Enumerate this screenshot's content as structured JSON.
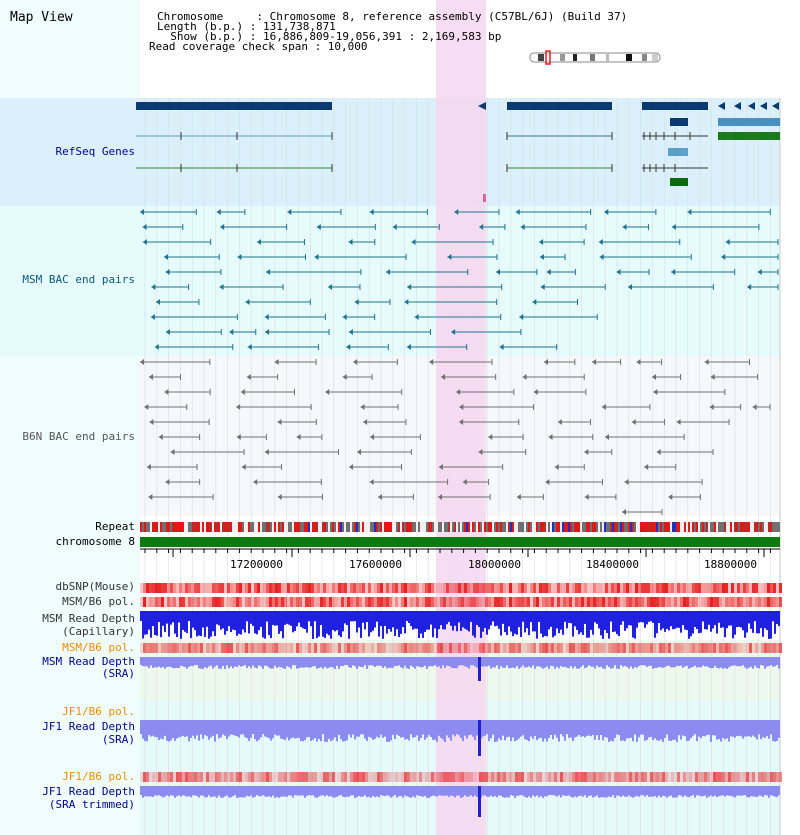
{
  "map_title": "Map View",
  "header": {
    "chromosome_line": "Chromosome     : Chromosome 8, reference assembly (C57BL/6J) (Build 37)",
    "length_line": "Length (b.p.) : 131,738,871",
    "show_line": "  Show (b.p.) : 16,886,809-19,056,391 : 2,169,583 bp",
    "coverage_line": "Read coverage check span : 10,000"
  },
  "tracks": {
    "refseq": "RefSeq Genes",
    "msm_bac": "MSM BAC end pairs",
    "b6n_bac": "B6N BAC end pairs",
    "repeat": "Repeat",
    "chromosome": "chromosome 8",
    "dbsnp": "dbSNP(Mouse)",
    "msm_b6_pol_1": "MSM/B6 pol.",
    "msm_depth_cap_1": "MSM Read Depth",
    "msm_depth_cap_2": "(Capillary)",
    "msm_b6_pol_2": "MSM/B6 pol.",
    "msm_depth_sra_1": "MSM Read Depth",
    "msm_depth_sra_2": "(SRA)",
    "jf1_b6_pol_1": "JF1/B6 pol.",
    "jf1_depth_sra_1": "JF1 Read Depth",
    "jf1_depth_sra_2": "(SRA)",
    "jf1_b6_pol_2": "JF1/B6 pol.",
    "jf1_depth_trim_1": "JF1 Read Depth",
    "jf1_depth_trim_2": "(SRA trimmed)"
  },
  "axis": {
    "ticks": [
      "17200000",
      "17600000",
      "18000000",
      "18400000",
      "18800000"
    ]
  },
  "colors": {
    "refseq_bg": "#dbf0fa",
    "bac_bg": "#e6fbfb",
    "highlight": "#f6d7ef",
    "gene_dark": "#0a3a72",
    "msm_label": "#0a5a7a",
    "msm_pair": "#1f7391",
    "b6n_pair": "#707070",
    "chrom_bar": "#0b7a10",
    "depth_blue": "#2020e0",
    "depth_light": "#8c8cee",
    "orange_label": "#f08c00",
    "blue_label": "#00008c"
  }
}
